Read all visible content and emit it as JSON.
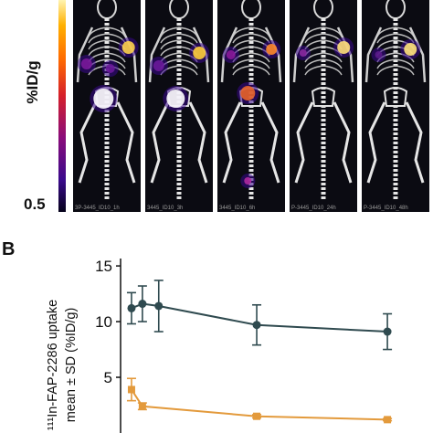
{
  "panel_a": {
    "colorbar": {
      "unit_label": "%ID/g",
      "min_label": "0.5",
      "gradient": [
        "#fff3b0",
        "#ffb000",
        "#ff6a00",
        "#d6202a",
        "#8a0c7a",
        "#3a0a8c",
        "#05021a"
      ]
    },
    "images": [
      {
        "caption": "3P-3445_ID10_1h"
      },
      {
        "caption": "3445_ID10_3h"
      },
      {
        "caption": "3445_ID10_6h"
      },
      {
        "caption": "P-3445_ID10_24h"
      },
      {
        "caption": "P-3445_ID10_48h"
      }
    ]
  },
  "panel_b": {
    "letter": "B",
    "chart_data": {
      "type": "line",
      "ylabel_line1": "¹¹¹In-FAP-2286 uptake",
      "ylabel_line2": "mean ± SD (%ID/g)",
      "xlabel": "",
      "yticks": [
        5,
        10,
        15
      ],
      "ylim": [
        0,
        15.5
      ],
      "xlim": [
        0,
        50
      ],
      "series": [
        {
          "color": "#2f4a4f",
          "x": [
            1,
            3,
            6,
            24,
            48
          ],
          "y": [
            11.2,
            11.6,
            11.4,
            9.7,
            9.1
          ],
          "sd": [
            1.4,
            1.6,
            2.3,
            1.8,
            1.6
          ]
        },
        {
          "color": "#e39a3c",
          "x": [
            1,
            3,
            24,
            48
          ],
          "y": [
            3.9,
            2.4,
            1.5,
            1.2
          ],
          "sd": [
            1.0,
            0.3,
            0.15,
            0.1
          ]
        }
      ]
    }
  }
}
